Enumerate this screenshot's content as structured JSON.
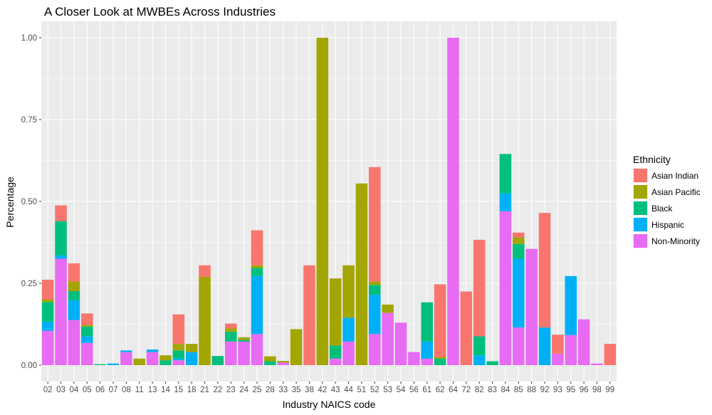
{
  "chart_data": {
    "type": "bar",
    "stacked": true,
    "title": "A Closer Look at MWBEs Across Industries",
    "xlabel": "Industry NAICS code",
    "ylabel": "Percentage",
    "ylim": [
      0,
      1.05
    ],
    "yticks": [
      "0.00",
      "0.25",
      "0.50",
      "0.75",
      "1.00"
    ],
    "grid": true,
    "legend_placement": "right",
    "legend_title": "Ethnicity",
    "categories": [
      "02",
      "03",
      "04",
      "05",
      "06",
      "07",
      "08",
      "11",
      "13",
      "14",
      "15",
      "18",
      "21",
      "22",
      "23",
      "24",
      "25",
      "28",
      "33",
      "35",
      "38",
      "42",
      "43",
      "44",
      "51",
      "52",
      "53",
      "54",
      "56",
      "61",
      "62",
      "64",
      "72",
      "82",
      "83",
      "84",
      "85",
      "88",
      "92",
      "93",
      "95",
      "96",
      "98",
      "99"
    ],
    "series": [
      {
        "name": "Non-Minority",
        "color": "#E76BF3",
        "values": [
          0.105,
          0.325,
          0.138,
          0.068,
          0,
          0,
          0.04,
          0,
          0.04,
          0,
          0.015,
          0,
          0,
          0,
          0.072,
          0.072,
          0.095,
          0,
          0.008,
          0,
          0,
          0,
          0.02,
          0.072,
          0,
          0.095,
          0.16,
          0.13,
          0.04,
          0.02,
          0,
          1.0,
          0,
          0,
          0,
          0.47,
          0.115,
          0.355,
          0,
          0.035,
          0.092,
          0.14,
          0.005,
          0
        ]
      },
      {
        "name": "Hispanic",
        "color": "#00B0F6",
        "values": [
          0.028,
          0.01,
          0.06,
          0.02,
          0,
          0.005,
          0.005,
          0,
          0.008,
          0,
          0.005,
          0.04,
          0,
          0,
          0,
          0,
          0.177,
          0,
          0,
          0,
          0,
          0,
          0,
          0.073,
          0,
          0.12,
          0,
          0,
          0,
          0.052,
          0,
          0,
          0,
          0.03,
          0,
          0.055,
          0.21,
          0,
          0.115,
          0,
          0.18,
          0,
          0,
          0
        ]
      },
      {
        "name": "Black",
        "color": "#00BF7D",
        "values": [
          0.06,
          0.105,
          0.028,
          0.03,
          0.003,
          0,
          0,
          0,
          0,
          0.015,
          0.025,
          0,
          0,
          0.028,
          0.03,
          0.005,
          0.025,
          0.012,
          0,
          0,
          0,
          0,
          0.04,
          0,
          0,
          0.03,
          0,
          0,
          0,
          0.12,
          0.02,
          0,
          0,
          0.058,
          0.012,
          0.12,
          0.045,
          0,
          0,
          0,
          0,
          0,
          0,
          0
        ]
      },
      {
        "name": "Asian Pacific",
        "color": "#A3A500",
        "values": [
          0.008,
          0,
          0.03,
          0.005,
          0,
          0,
          0,
          0.02,
          0,
          0.015,
          0.02,
          0.025,
          0.27,
          0,
          0.01,
          0.008,
          0.008,
          0.015,
          0.005,
          0.11,
          0,
          1.0,
          0.205,
          0.16,
          0.555,
          0.01,
          0.025,
          0,
          0,
          0,
          0.005,
          0,
          0,
          0,
          0,
          0,
          0.02,
          0,
          0,
          0,
          0,
          0,
          0,
          0
        ]
      },
      {
        "name": "Asian Indian",
        "color": "#F8766D",
        "values": [
          0.06,
          0.048,
          0.055,
          0.035,
          0,
          0,
          0,
          0,
          0,
          0,
          0.09,
          0,
          0.035,
          0,
          0.015,
          0,
          0.107,
          0,
          0,
          0,
          0.305,
          0,
          0,
          0,
          0,
          0.35,
          0,
          0,
          0,
          0,
          0.222,
          0,
          0.225,
          0.295,
          0,
          0,
          0.015,
          0,
          0.35,
          0.058,
          0,
          0,
          0,
          0.065
        ]
      }
    ]
  }
}
